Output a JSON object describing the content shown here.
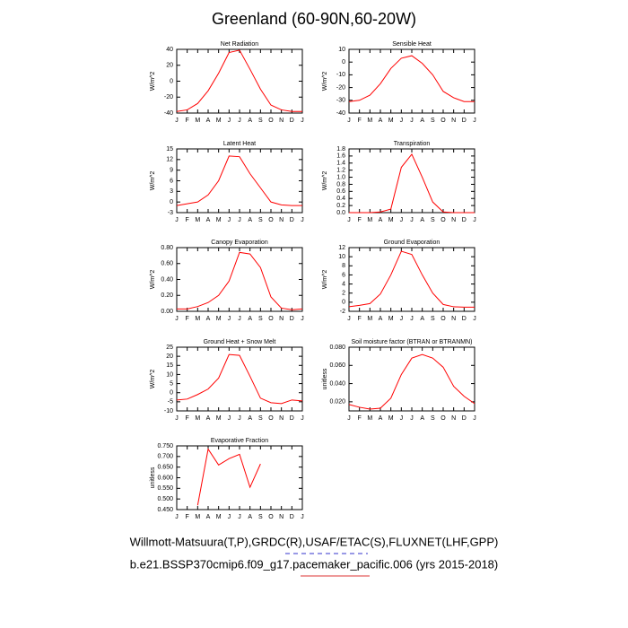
{
  "title": "Greenland (60-90N,60-20W)",
  "chart_data": [
    {
      "type": "line",
      "title": "Net Radiation",
      "ylabel": "W/m^2",
      "categories": [
        "J",
        "F",
        "M",
        "A",
        "M",
        "J",
        "J",
        "A",
        "S",
        "O",
        "N",
        "D",
        "J"
      ],
      "series": [
        {
          "color": "#ff0000",
          "values": [
            -38,
            -36,
            -28,
            -12,
            10,
            36,
            39,
            15,
            -10,
            -30,
            -36,
            -38,
            -38
          ]
        }
      ],
      "ylim": [
        -40,
        40
      ],
      "yticks": [
        -40,
        -20,
        0,
        20,
        40
      ]
    },
    {
      "type": "line",
      "title": "Sensible Heat",
      "ylabel": "W/m^2",
      "categories": [
        "J",
        "F",
        "M",
        "A",
        "M",
        "J",
        "J",
        "A",
        "S",
        "O",
        "N",
        "D",
        "J"
      ],
      "series": [
        {
          "color": "#ff0000",
          "values": [
            -31,
            -30,
            -26,
            -17,
            -5,
            3,
            5,
            -1,
            -10,
            -23,
            -28,
            -31,
            -31
          ]
        }
      ],
      "ylim": [
        -40,
        10
      ],
      "yticks": [
        -40,
        -30,
        -20,
        -10,
        0,
        10
      ]
    },
    {
      "type": "line",
      "title": "Latent Heat",
      "ylabel": "W/m^2",
      "categories": [
        "J",
        "F",
        "M",
        "A",
        "M",
        "J",
        "J",
        "A",
        "S",
        "O",
        "N",
        "D",
        "J"
      ],
      "series": [
        {
          "color": "#ff0000",
          "values": [
            -1,
            -0.5,
            0,
            2,
            6,
            13,
            12.8,
            8,
            4,
            0,
            -0.8,
            -1,
            -1
          ]
        }
      ],
      "ylim": [
        -3,
        15
      ],
      "yticks": [
        -3,
        0,
        3,
        6,
        9,
        12,
        15
      ]
    },
    {
      "type": "line",
      "title": "Transpiration",
      "ylabel": "W/m^2",
      "categories": [
        "J",
        "F",
        "M",
        "A",
        "M",
        "J",
        "J",
        "A",
        "S",
        "O",
        "N",
        "D",
        "J"
      ],
      "series": [
        {
          "color": "#ff0000",
          "values": [
            0,
            0,
            0,
            0.02,
            0.1,
            1.28,
            1.65,
            1.0,
            0.3,
            0.02,
            0,
            0,
            0
          ]
        }
      ],
      "ylim": [
        0,
        1.8
      ],
      "yticks": [
        {
          "value": 0,
          "label": "0.0"
        },
        0.2,
        0.4,
        0.6,
        0.8,
        {
          "value": 1,
          "label": "1.0"
        },
        1.2,
        1.4,
        1.6,
        1.8
      ]
    },
    {
      "type": "line",
      "title": "Canopy Evaporation",
      "ylabel": "W/m^2",
      "categories": [
        "J",
        "F",
        "M",
        "A",
        "M",
        "J",
        "J",
        "A",
        "S",
        "O",
        "N",
        "D",
        "J"
      ],
      "series": [
        {
          "color": "#ff0000",
          "values": [
            0.03,
            0.03,
            0.06,
            0.11,
            0.2,
            0.38,
            0.74,
            0.72,
            0.55,
            0.18,
            0.04,
            0.02,
            0.03
          ]
        }
      ],
      "ylim": [
        0,
        0.8
      ],
      "yticks": [
        {
          "value": 0,
          "label": "0.00"
        },
        {
          "value": 0.2,
          "label": "0.20"
        },
        {
          "value": 0.4,
          "label": "0.40"
        },
        {
          "value": 0.6,
          "label": "0.60"
        },
        {
          "value": 0.8,
          "label": "0.80"
        }
      ]
    },
    {
      "type": "line",
      "title": "Ground Evaporation",
      "ylabel": "W/m^2",
      "categories": [
        "J",
        "F",
        "M",
        "A",
        "M",
        "J",
        "J",
        "A",
        "S",
        "O",
        "N",
        "D",
        "J"
      ],
      "series": [
        {
          "color": "#ff0000",
          "values": [
            -1,
            -0.7,
            -0.3,
            1.8,
            6,
            11.2,
            10.5,
            6,
            2,
            -0.5,
            -1,
            -1.1,
            -1.1
          ]
        }
      ],
      "ylim": [
        -2,
        12
      ],
      "yticks": [
        -2,
        0,
        2,
        4,
        6,
        8,
        10,
        12
      ]
    },
    {
      "type": "line",
      "title": "Ground Heat + Snow Melt",
      "ylabel": "W/m^2",
      "categories": [
        "J",
        "F",
        "M",
        "A",
        "M",
        "J",
        "J",
        "A",
        "S",
        "O",
        "N",
        "D",
        "J"
      ],
      "series": [
        {
          "color": "#ff0000",
          "values": [
            -4,
            -3.5,
            -1,
            2,
            8,
            21,
            20.5,
            9,
            -3,
            -5.5,
            -6,
            -4,
            -4.5
          ]
        }
      ],
      "ylim": [
        -10,
        25
      ],
      "yticks": [
        -10,
        -5,
        0,
        5,
        10,
        15,
        20,
        25
      ]
    },
    {
      "type": "line",
      "title": "Soil moisture factor (BTRAN or BTRANMN)",
      "ylabel": "unitless",
      "categories": [
        "J",
        "F",
        "M",
        "A",
        "M",
        "J",
        "J",
        "A",
        "S",
        "O",
        "N",
        "D",
        "J"
      ],
      "series": [
        {
          "color": "#ff0000",
          "values": [
            0.017,
            0.014,
            0.012,
            0.013,
            0.024,
            0.05,
            0.068,
            0.072,
            0.068,
            0.058,
            0.037,
            0.026,
            0.018
          ]
        }
      ],
      "ylim": [
        0.01,
        0.08
      ],
      "yticks": [
        {
          "value": 0.02,
          "label": "0.020"
        },
        {
          "value": 0.04,
          "label": "0.040"
        },
        {
          "value": 0.06,
          "label": "0.060"
        },
        {
          "value": 0.08,
          "label": "0.080"
        }
      ]
    },
    {
      "type": "line",
      "title": "Evaporative Fraction",
      "ylabel": "unitless",
      "categories": [
        "J",
        "F",
        "M",
        "A",
        "M",
        "J",
        "J",
        "A",
        "S",
        "O",
        "N",
        "D",
        "J"
      ],
      "series": [
        {
          "color": "#ff0000",
          "values": [
            null,
            null,
            0.47,
            0.735,
            0.66,
            0.69,
            0.71,
            0.555,
            0.665,
            null,
            null,
            null,
            null
          ]
        }
      ],
      "ylim": [
        0.45,
        0.75
      ],
      "yticks": [
        {
          "value": 0.45,
          "label": "0.450"
        },
        {
          "value": 0.5,
          "label": "0.500"
        },
        {
          "value": 0.55,
          "label": "0.550"
        },
        {
          "value": 0.6,
          "label": "0.600"
        },
        {
          "value": 0.65,
          "label": "0.650"
        },
        {
          "value": 0.7,
          "label": "0.700"
        },
        {
          "value": 0.75,
          "label": "0.750"
        }
      ]
    }
  ],
  "footer": [
    "Willmott-Matsuura(T,P),GRDC(R),USAF/ETAC(S),FLUXNET(LHF,GPP)",
    "b.e21.BSSP370cmip6.f09_g17.pacemaker_pacific.006 (yrs 2015-2018)"
  ]
}
